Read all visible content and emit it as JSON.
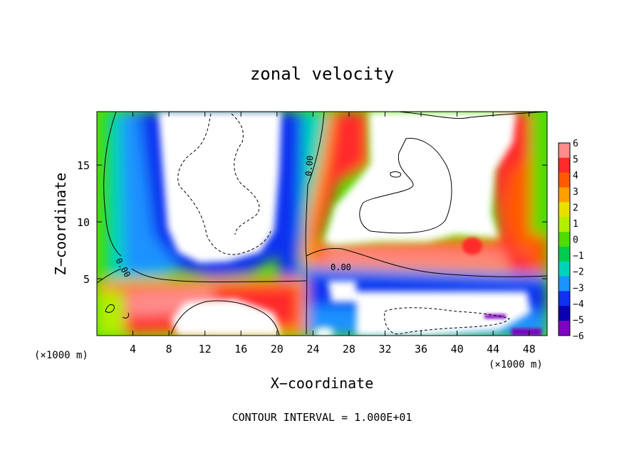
{
  "chart_data": {
    "type": "heatmap",
    "title": "zonal velocity",
    "xlabel": "X−coordinate",
    "ylabel": "Z−coordinate",
    "x_unit_left": "(×1000 m)",
    "x_unit_right": "(×1000 m)",
    "footer": "CONTOUR INTERVAL = 1.000E+01",
    "contour_label": "0.00",
    "xlim": [
      0,
      50
    ],
    "ylim": [
      0,
      19.7
    ],
    "x_ticks": [
      4,
      8,
      12,
      16,
      20,
      24,
      28,
      32,
      36,
      40,
      44,
      48
    ],
    "x_tick_labels": [
      "4",
      "8",
      "12",
      "16",
      "20",
      "24",
      "28",
      "32",
      "36",
      "40",
      "44",
      "48"
    ],
    "y_ticks": [
      5,
      10,
      15
    ],
    "y_tick_labels": [
      "5",
      "10",
      "15"
    ],
    "colorbar": {
      "range": [
        -6,
        6
      ],
      "labels": [
        "6",
        "5",
        "4",
        "3",
        "2",
        "1",
        "0",
        "−1",
        "−2",
        "−3",
        "−4",
        "−5",
        "−6"
      ],
      "colors": [
        "#ff8c8c",
        "#ff2a2a",
        "#ff5a00",
        "#ffa000",
        "#e8e000",
        "#b4ee00",
        "#50dc00",
        "#00cc50",
        "#00d4b8",
        "#1c92ff",
        "#1030f0",
        "#0a00b0",
        "#8000c0"
      ]
    },
    "grid": false,
    "legend": "right"
  }
}
